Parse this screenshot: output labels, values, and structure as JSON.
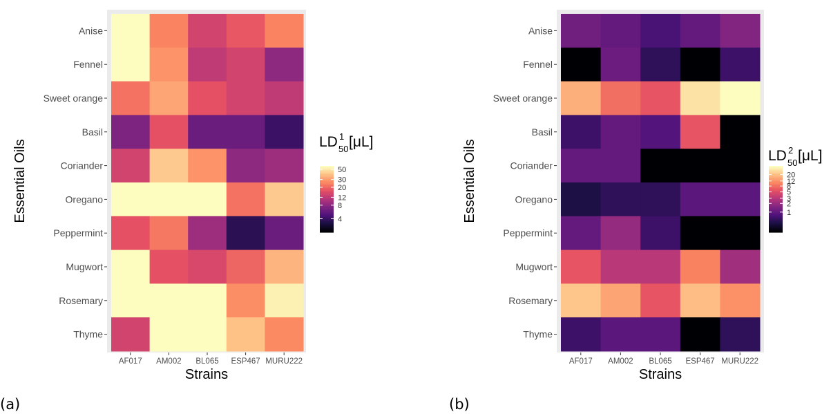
{
  "chart_data": [
    {
      "type": "heatmap",
      "panel_label": "(a)",
      "xlabel": "Strains",
      "ylabel": "Essential Oils",
      "x_categories": [
        "AF017",
        "AM002",
        "BL065",
        "ESP467",
        "MURU222"
      ],
      "y_categories": [
        "Anise",
        "Fennel",
        "Sweet orange",
        "Basil",
        "Coriander",
        "Oregano",
        "Peppermint",
        "Mugwort",
        "Rosemary",
        "Thyme"
      ],
      "legend": {
        "title_main": "LD",
        "title_sub": "50",
        "title_sup": "1",
        "title_unit": "[μL]",
        "scale": "log",
        "range": [
          2,
          60
        ],
        "ticks": [
          "50",
          "30",
          "20",
          "12",
          "8",
          "4"
        ]
      },
      "values": [
        [
          60,
          25,
          14,
          18,
          25
        ],
        [
          60,
          28,
          12,
          14,
          8
        ],
        [
          22,
          32,
          17,
          14,
          12
        ],
        [
          7,
          17,
          6,
          6,
          4
        ],
        [
          14,
          42,
          28,
          8,
          9
        ],
        [
          60,
          60,
          60,
          22,
          42
        ],
        [
          17,
          23,
          9,
          3.5,
          6
        ],
        [
          60,
          17,
          15,
          20,
          36
        ],
        [
          60,
          60,
          60,
          27,
          55
        ],
        [
          14,
          60,
          60,
          40,
          26
        ]
      ]
    },
    {
      "type": "heatmap",
      "panel_label": "(b)",
      "xlabel": "Strains",
      "ylabel": "Essential Oils",
      "x_categories": [
        "AF017",
        "AM002",
        "BL065",
        "ESP467",
        "MURU222"
      ],
      "y_categories": [
        "Anise",
        "Fennel",
        "Sweet orange",
        "Basil",
        "Coriander",
        "Oregano",
        "Peppermint",
        "Mugwort",
        "Rosemary",
        "Thyme"
      ],
      "legend": {
        "title_main": "LD",
        "title_sub": "50",
        "title_sup": "2",
        "title_unit": "[μL]",
        "scale": "log",
        "range": [
          0.2,
          40
        ],
        "ticks": [
          "20",
          "12",
          "8",
          "5",
          "3",
          "2",
          "1"
        ]
      },
      "values": [
        [
          1.2,
          1.0,
          0.7,
          1.0,
          1.5
        ],
        [
          0.2,
          1.1,
          0.5,
          0.2,
          0.6
        ],
        [
          17,
          8,
          6,
          30,
          40
        ],
        [
          0.6,
          1.0,
          0.8,
          6,
          0.2
        ],
        [
          1.0,
          1.0,
          0.2,
          0.2,
          0.2
        ],
        [
          0.4,
          0.5,
          0.5,
          0.9,
          0.9
        ],
        [
          1.0,
          1.9,
          0.6,
          0.2,
          0.2
        ],
        [
          6,
          3,
          3,
          10,
          2.2
        ],
        [
          22,
          15,
          6,
          20,
          12
        ],
        [
          0.6,
          0.9,
          0.9,
          0.2,
          0.5
        ]
      ]
    }
  ]
}
